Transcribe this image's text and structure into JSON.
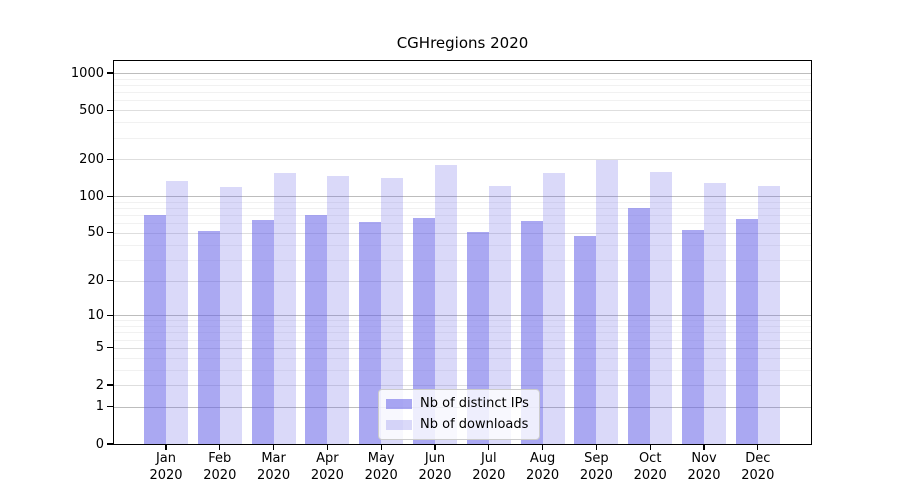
{
  "chart_data": {
    "type": "bar",
    "title": "CGHregions 2020",
    "categories": [
      "Jan 2020",
      "Feb 2020",
      "Mar 2020",
      "Apr 2020",
      "May 2020",
      "Jun 2020",
      "Jul 2020",
      "Aug 2020",
      "Sep 2020",
      "Oct 2020",
      "Nov 2020",
      "Dec 2020"
    ],
    "x_tick_month": [
      "Jan",
      "Feb",
      "Mar",
      "Apr",
      "May",
      "Jun",
      "Jul",
      "Aug",
      "Sep",
      "Oct",
      "Nov",
      "Dec"
    ],
    "x_tick_year": "2020",
    "series": [
      {
        "name": "Nb of distinct IPs",
        "color": "rgba(100,96,232,0.55)",
        "values": [
          70,
          52,
          64,
          70,
          62,
          66,
          51,
          63,
          47,
          80,
          53,
          65
        ]
      },
      {
        "name": "Nb of downloads",
        "color": "rgba(100,96,232,0.24)",
        "values": [
          132,
          118,
          155,
          146,
          141,
          181,
          120,
          155,
          198,
          158,
          127,
          120
        ]
      }
    ],
    "yscale": "log10(1+v)",
    "ylim": [
      0,
      1250
    ],
    "yticks_labeled": [
      0,
      1,
      2,
      5,
      10,
      20,
      50,
      100,
      200,
      500,
      1000
    ],
    "gridlines": {
      "major": [
        1,
        10,
        100,
        1000
      ],
      "mid": [
        2,
        5,
        20,
        50,
        200,
        500
      ],
      "minor": [
        3,
        4,
        6,
        7,
        8,
        9,
        30,
        40,
        60,
        70,
        80,
        90,
        300,
        400,
        600,
        700,
        800,
        900
      ]
    },
    "legend_position": "bottom-center",
    "grid": true
  },
  "colors": {
    "grid_major": "#bdbdbd",
    "grid_mid": "#dedede",
    "grid_minor": "#f1f1f1",
    "spine": "#000000",
    "tick": "#000000"
  }
}
